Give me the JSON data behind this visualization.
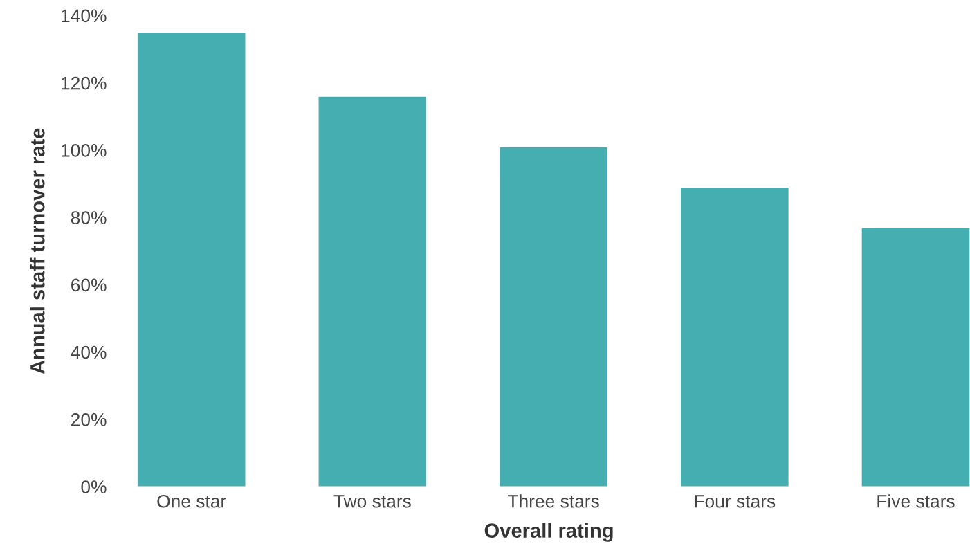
{
  "chart_data": {
    "type": "bar",
    "xlabel": "Overall rating",
    "ylabel": "Annual staff turnover rate",
    "categories": [
      "One star",
      "Two stars",
      "Three stars",
      "Four stars",
      "Five stars"
    ],
    "values": [
      135,
      116,
      101,
      89,
      77
    ],
    "color": "#45aeb0",
    "ylim": [
      0,
      140
    ],
    "yticks": [
      {
        "value": 0,
        "label": "0%"
      },
      {
        "value": 20,
        "label": "20%"
      },
      {
        "value": 40,
        "label": "40%"
      },
      {
        "value": 60,
        "label": "60%"
      },
      {
        "value": 80,
        "label": "80%"
      },
      {
        "value": 100,
        "label": "100%"
      },
      {
        "value": 120,
        "label": "120%"
      },
      {
        "value": 140,
        "label": "140%"
      }
    ],
    "grid": false,
    "legend": false
  }
}
